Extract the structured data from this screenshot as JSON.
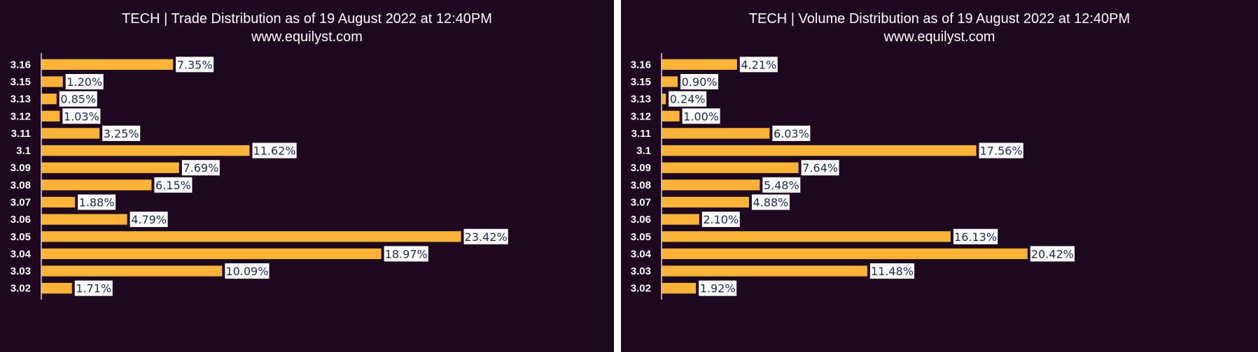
{
  "chart_data": [
    {
      "type": "bar",
      "orientation": "horizontal",
      "title": "TECH | Trade Distribution as of 19 August 2022 at 12:40PM",
      "subtitle": "www.equilyst.com",
      "categories": [
        "3.16",
        "3.15",
        "3.13",
        "3.12",
        "3.11",
        "3.1",
        "3.09",
        "3.08",
        "3.07",
        "3.06",
        "3.05",
        "3.04",
        "3.03",
        "3.02"
      ],
      "values": [
        7.35,
        1.2,
        0.85,
        1.03,
        3.25,
        11.62,
        7.69,
        6.15,
        1.88,
        4.79,
        23.42,
        18.97,
        10.09,
        1.71
      ],
      "labels": [
        "7.35%",
        "1.20%",
        "0.85%",
        "1.03%",
        "3.25%",
        "11.62%",
        "7.69%",
        "6.15%",
        "1.88%",
        "4.79%",
        "23.42%",
        "18.97%",
        "10.09%",
        "1.71%"
      ],
      "xlim": [
        0,
        25
      ],
      "grid": false,
      "bar_color": "#fbb337",
      "background_color": "#1e0820"
    },
    {
      "type": "bar",
      "orientation": "horizontal",
      "title": "TECH | Volume Distribution as of 19 August 2022 at 12:40PM",
      "subtitle": "www.equilyst.com",
      "categories": [
        "3.16",
        "3.15",
        "3.13",
        "3.12",
        "3.11",
        "3.1",
        "3.09",
        "3.08",
        "3.07",
        "3.06",
        "3.05",
        "3.04",
        "3.03",
        "3.02"
      ],
      "values": [
        4.21,
        0.9,
        0.24,
        1.0,
        6.03,
        17.56,
        7.64,
        5.48,
        4.88,
        2.1,
        16.13,
        20.42,
        11.48,
        1.92
      ],
      "labels": [
        "4.21%",
        "0.90%",
        "0.24%",
        "1.00%",
        "6.03%",
        "17.56%",
        "7.64%",
        "5.48%",
        "4.88%",
        "2.10%",
        "16.13%",
        "20.42%",
        "11.48%",
        "1.92%"
      ],
      "xlim": [
        0,
        25
      ],
      "grid": false,
      "bar_color": "#fbb337",
      "background_color": "#1e0820"
    }
  ]
}
